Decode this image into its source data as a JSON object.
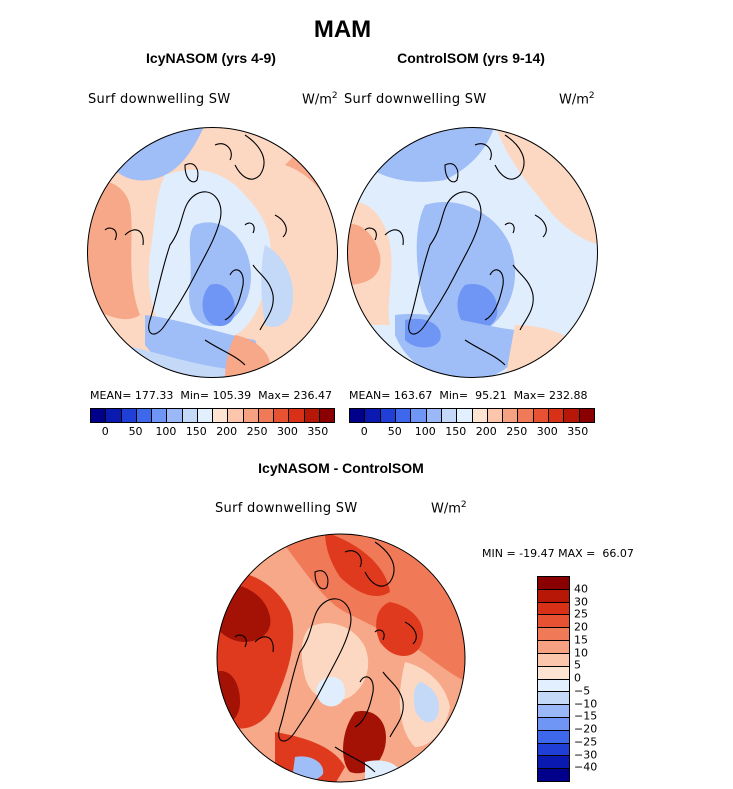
{
  "figure": {
    "season": "MAM",
    "units_base": "W/m",
    "units_exp": "2"
  },
  "panels": [
    {
      "title": "IcyNASOM (yrs 4-9)",
      "variable": "Surf downwelling SW",
      "stats_text": "MEAN= 177.33  Min= 105.39  Max= 236.47",
      "mean": 177.33,
      "min": 105.39,
      "max": 236.47
    },
    {
      "title": "ControlSOM (yrs 9-14)",
      "variable": "Surf downwelling SW",
      "stats_text": "MEAN= 163.67  Min=  95.21  Max= 232.88",
      "mean": 163.67,
      "min": 95.21,
      "max": 232.88
    },
    {
      "title": "IcyNASOM - ControlSOM",
      "variable": "Surf downwelling SW",
      "stats_text": "MIN = -19.47 MAX =  66.07",
      "min": -19.47,
      "max": 66.07
    }
  ],
  "colorbar_abs": {
    "tick_labels": [
      "0",
      "50",
      "100",
      "150",
      "200",
      "250",
      "300",
      "350"
    ],
    "colors": [
      "#00008b",
      "#0a1ab0",
      "#1f3fd6",
      "#3d68ec",
      "#6f95f5",
      "#9ab8f7",
      "#c4d8f8",
      "#e2efff",
      "#fde3d2",
      "#fbc6ab",
      "#f6a181",
      "#f07a58",
      "#e75232",
      "#d93018",
      "#b61706",
      "#8a0000"
    ]
  },
  "colorbar_diff": {
    "tick_labels": [
      "40",
      "30",
      "25",
      "20",
      "15",
      "10",
      "5",
      "0",
      "−5",
      "−10",
      "−15",
      "−20",
      "−25",
      "−30",
      "−40"
    ],
    "colors": [
      "#8a0000",
      "#b61706",
      "#d93018",
      "#e75232",
      "#f07a58",
      "#f6a181",
      "#fbc6ab",
      "#fde3d2",
      "#e2efff",
      "#c4d8f8",
      "#9ab8f7",
      "#6f95f5",
      "#3d68ec",
      "#1f3fd6",
      "#0a1ab0",
      "#00008b"
    ]
  },
  "map_fill_colors": {
    "ocean_light": "#e0edfd",
    "blue_mid": "#9fbdf6",
    "blue_dark": "#6f95f5",
    "peach": "#fcd8c2",
    "salmon": "#f7a888",
    "orange": "#f07a58",
    "red": "#e03a1e",
    "dark_red": "#a31204"
  }
}
